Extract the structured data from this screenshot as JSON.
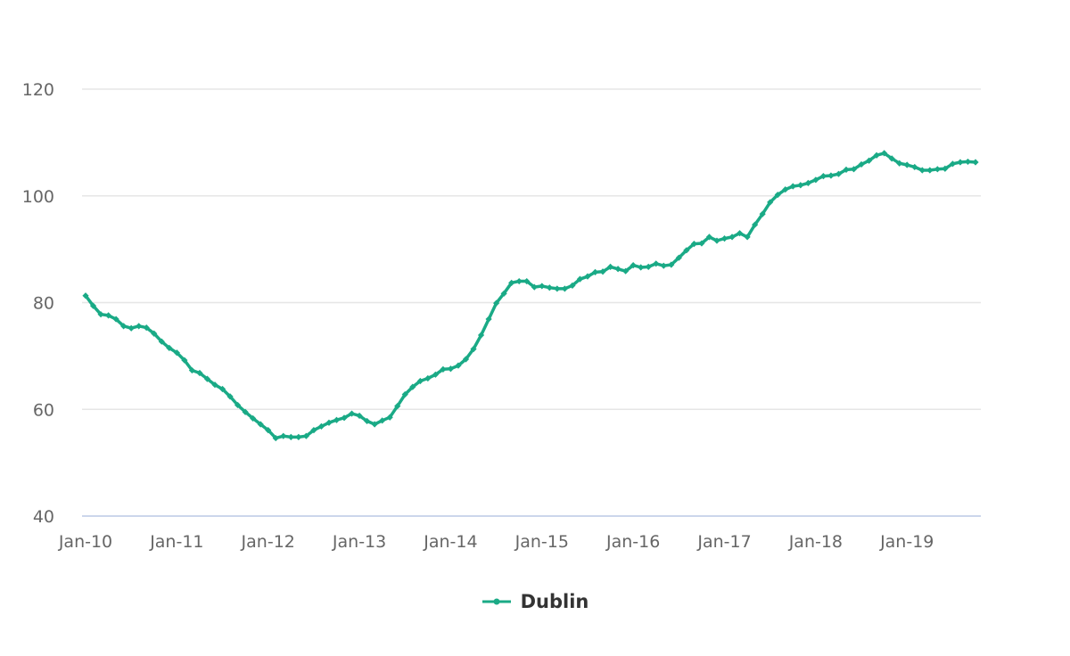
{
  "chart_data": {
    "type": "line",
    "title": "",
    "xlabel": "",
    "ylabel": "",
    "ylim": [
      40,
      120
    ],
    "yticks": [
      40,
      60,
      80,
      100,
      120
    ],
    "xtick_labels": [
      "Jan-10",
      "Jan-11",
      "Jan-12",
      "Jan-13",
      "Jan-14",
      "Jan-15",
      "Jan-16",
      "Jan-17",
      "Jan-18",
      "Jan-19"
    ],
    "grid": true,
    "legend_position": "bottom-center",
    "series": [
      {
        "name": "Dublin",
        "color": "#1aaa86",
        "start": "Jan-10",
        "frequency": "monthly",
        "values": [
          81.3,
          79.4,
          77.8,
          77.6,
          76.9,
          75.6,
          75.2,
          75.6,
          75.3,
          74.2,
          72.7,
          71.5,
          70.6,
          69.2,
          67.3,
          66.8,
          65.7,
          64.6,
          63.8,
          62.4,
          60.8,
          59.5,
          58.3,
          57.2,
          56.1,
          54.6,
          55.0,
          54.8,
          54.8,
          55.0,
          56.1,
          56.8,
          57.5,
          58.0,
          58.4,
          59.2,
          58.8,
          57.8,
          57.2,
          57.9,
          58.5,
          60.6,
          62.8,
          64.2,
          65.3,
          65.8,
          66.5,
          67.5,
          67.6,
          68.2,
          69.4,
          71.3,
          73.9,
          76.9,
          79.9,
          81.7,
          83.7,
          84.0,
          84.0,
          82.9,
          83.1,
          82.8,
          82.6,
          82.6,
          83.2,
          84.4,
          84.9,
          85.7,
          85.8,
          86.7,
          86.3,
          85.9,
          87.0,
          86.6,
          86.7,
          87.3,
          86.9,
          87.1,
          88.4,
          89.8,
          91.0,
          91.1,
          92.3,
          91.6,
          92.0,
          92.3,
          93.0,
          92.3,
          94.6,
          96.6,
          98.8,
          100.2,
          101.2,
          101.8,
          102.0,
          102.4,
          103.0,
          103.7,
          103.8,
          104.1,
          104.9,
          105.0,
          105.9,
          106.6,
          107.6,
          108.0,
          107.0,
          106.1,
          105.8,
          105.4,
          104.8,
          104.8,
          105.0,
          105.1,
          106.0,
          106.3,
          106.4,
          106.3
        ]
      }
    ]
  }
}
